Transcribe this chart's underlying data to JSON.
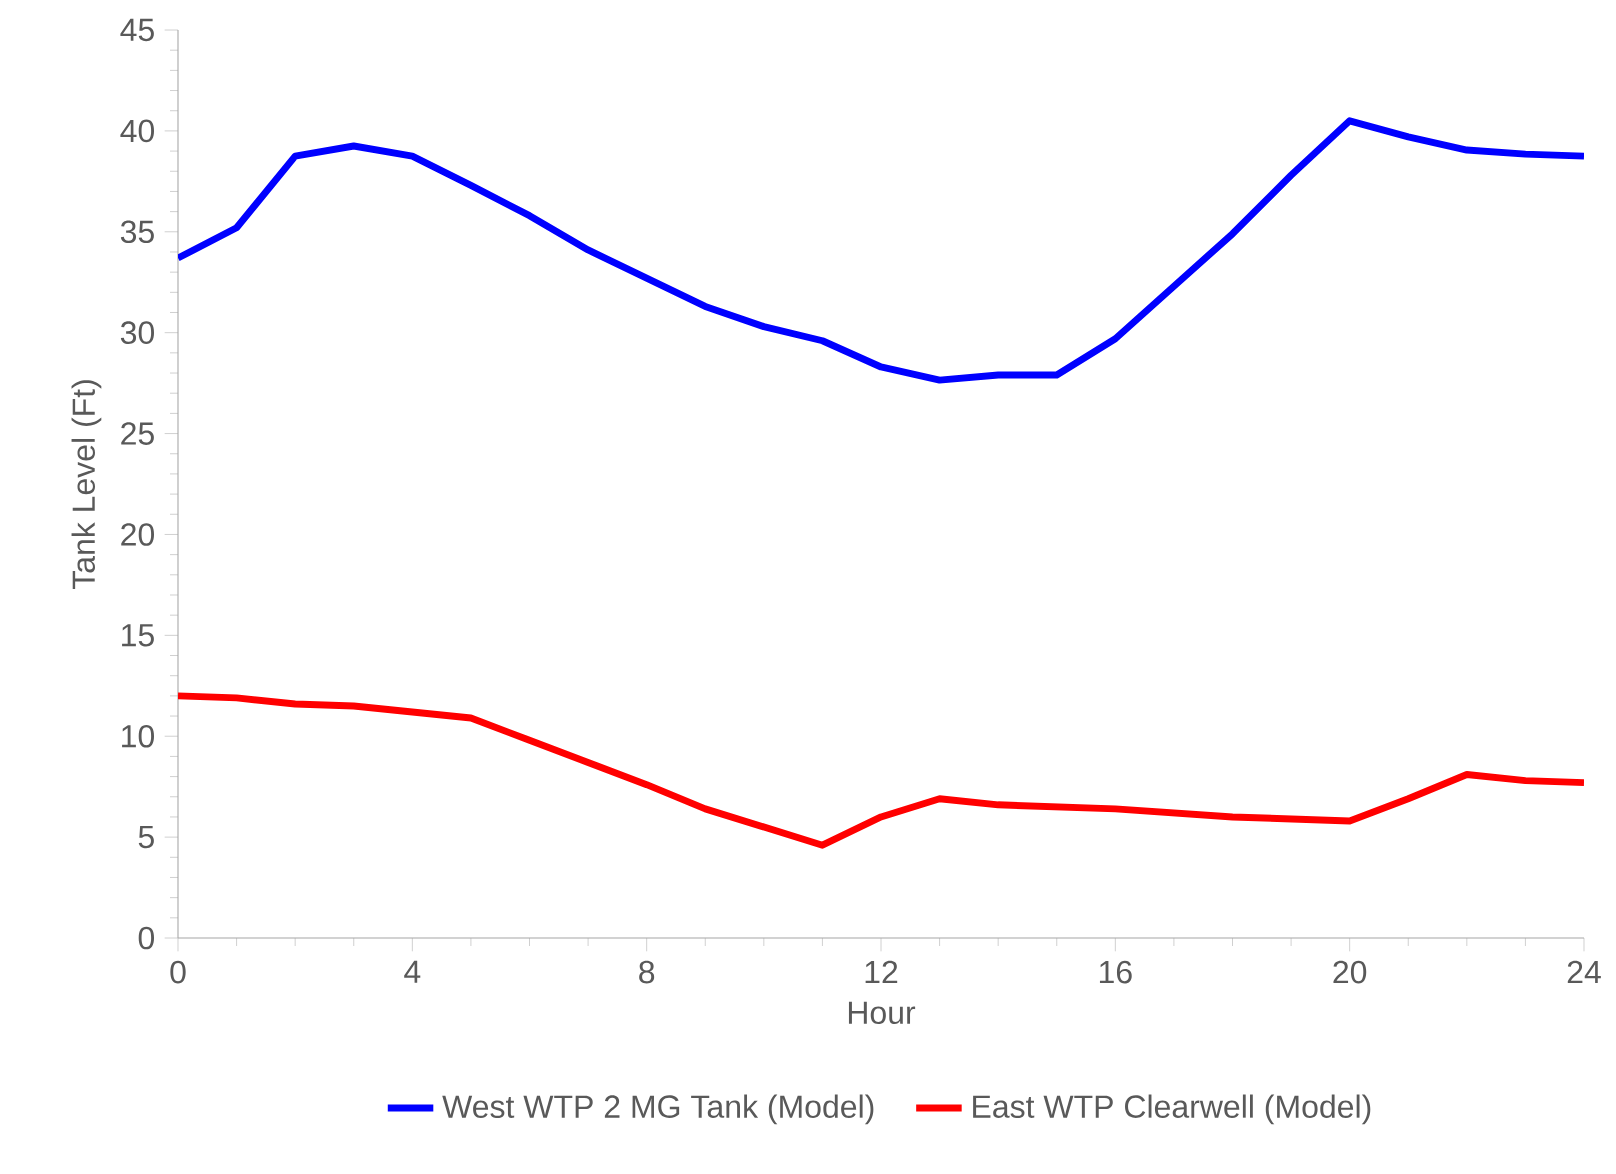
{
  "chart_data": {
    "type": "line",
    "xlabel": "Hour",
    "ylabel": "Tank Level (Ft)",
    "x": [
      0,
      1,
      2,
      3,
      4,
      5,
      6,
      7,
      8,
      9,
      10,
      11,
      12,
      13,
      14,
      15,
      16,
      17,
      18,
      19,
      20,
      21,
      22,
      23,
      24
    ],
    "series": [
      {
        "name": "West WTP 2 MG Tank (Model)",
        "color": "#0000ff",
        "values": [
          33.7,
          35.2,
          38.75,
          39.25,
          38.75,
          37.3,
          35.8,
          34.1,
          32.7,
          31.3,
          30.3,
          29.6,
          28.3,
          27.65,
          27.9,
          27.9,
          29.7,
          32.3,
          34.9,
          37.8,
          40.5,
          39.7,
          39.05,
          38.85,
          38.75
        ]
      },
      {
        "name": "East WTP Clearwell (Model)",
        "color": "#ff0000",
        "values": [
          12.0,
          11.9,
          11.6,
          11.5,
          11.2,
          10.9,
          9.8,
          8.7,
          7.6,
          6.4,
          5.5,
          4.6,
          6.0,
          6.9,
          6.6,
          6.5,
          6.4,
          6.2,
          6.0,
          5.9,
          5.8,
          6.9,
          8.1,
          7.8,
          7.7
        ]
      }
    ],
    "xlim": [
      0,
      24
    ],
    "xticks": [
      0,
      4,
      8,
      12,
      16,
      20,
      24
    ],
    "ylim": [
      0,
      45
    ],
    "yticks": [
      0,
      5,
      10,
      15,
      20,
      25,
      30,
      35,
      40,
      45
    ],
    "grid": false,
    "legend": "bottom",
    "marker": "none",
    "line_style": "solid"
  }
}
